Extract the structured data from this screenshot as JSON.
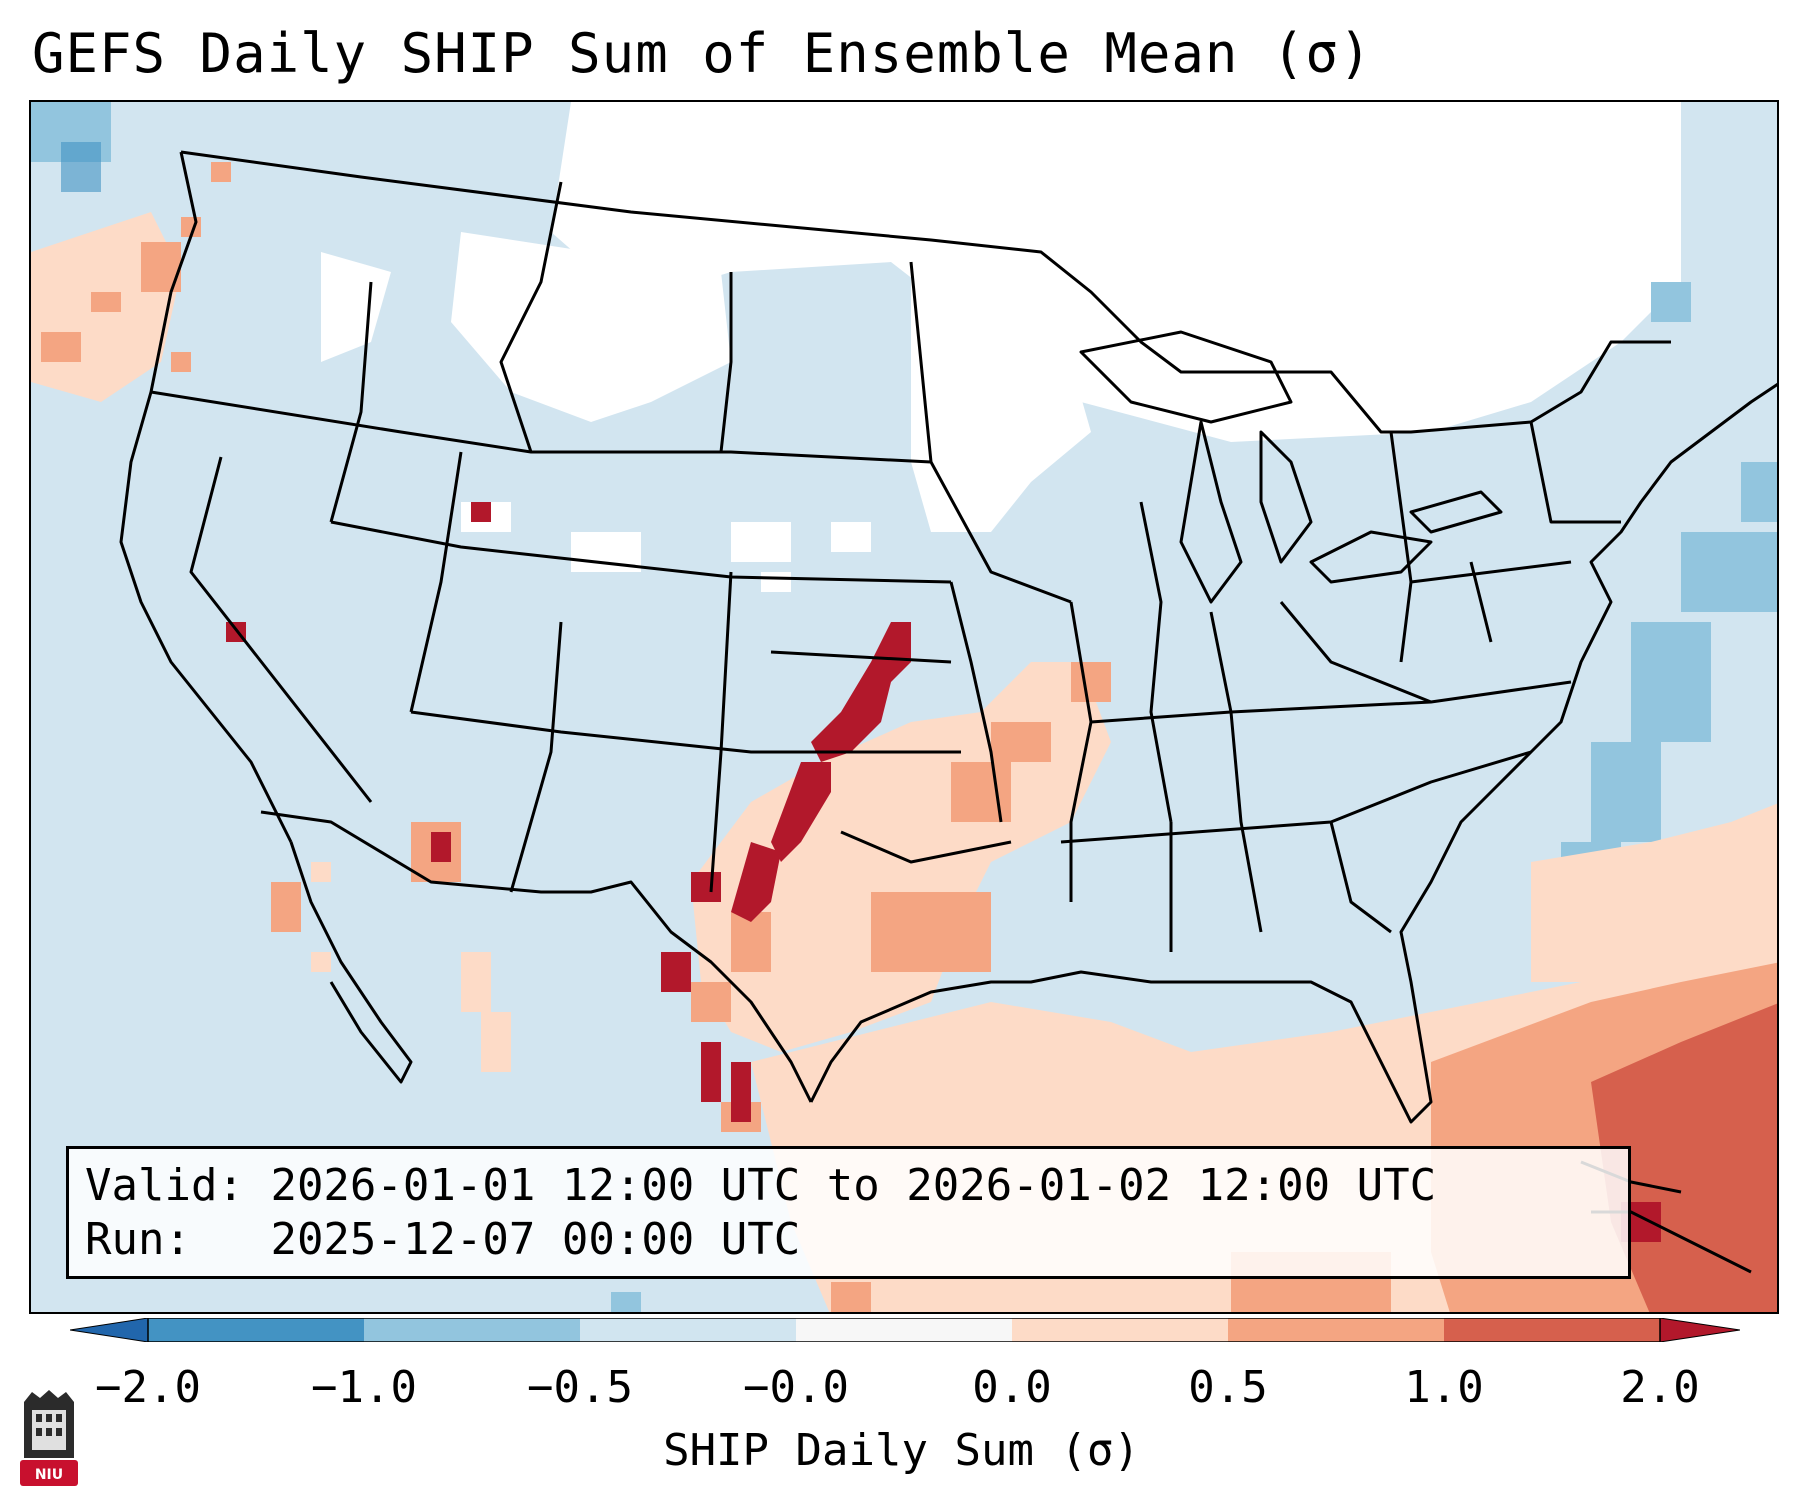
{
  "title": "GEFS Daily SHIP Sum of Ensemble Mean (σ)",
  "valid": {
    "label": "Valid:",
    "start": "2026-01-01 12:00 UTC",
    "connector": "to",
    "end": "2026-01-02 12:00 UTC"
  },
  "run": {
    "label": "Run:",
    "time": "2025-12-07 00:00 UTC"
  },
  "colorbar": {
    "label": "SHIP Daily Sum (σ)",
    "ticks": [
      "−2.0",
      "−1.0",
      "−0.5",
      "−0.0",
      "0.0",
      "0.5",
      "1.0",
      "2.0"
    ],
    "colors": {
      "lt_-2": "#2166ac",
      "-2_-1": "#4393c3",
      "-1_-0.5": "#92c5de",
      "-0.5_0": "#d1e5f0",
      "0_0.5": "#fddbc7",
      "0.5_1": "#f4a582",
      "1_2": "#d6604d",
      "gt_2": "#b2182b",
      "zero_band": "#f7f7f7"
    }
  },
  "logo": {
    "text": "NIU"
  },
  "colors": {
    "border": "#000000",
    "land_bg": "#d2e5f0",
    "water_bg": "#d2e5f0"
  }
}
